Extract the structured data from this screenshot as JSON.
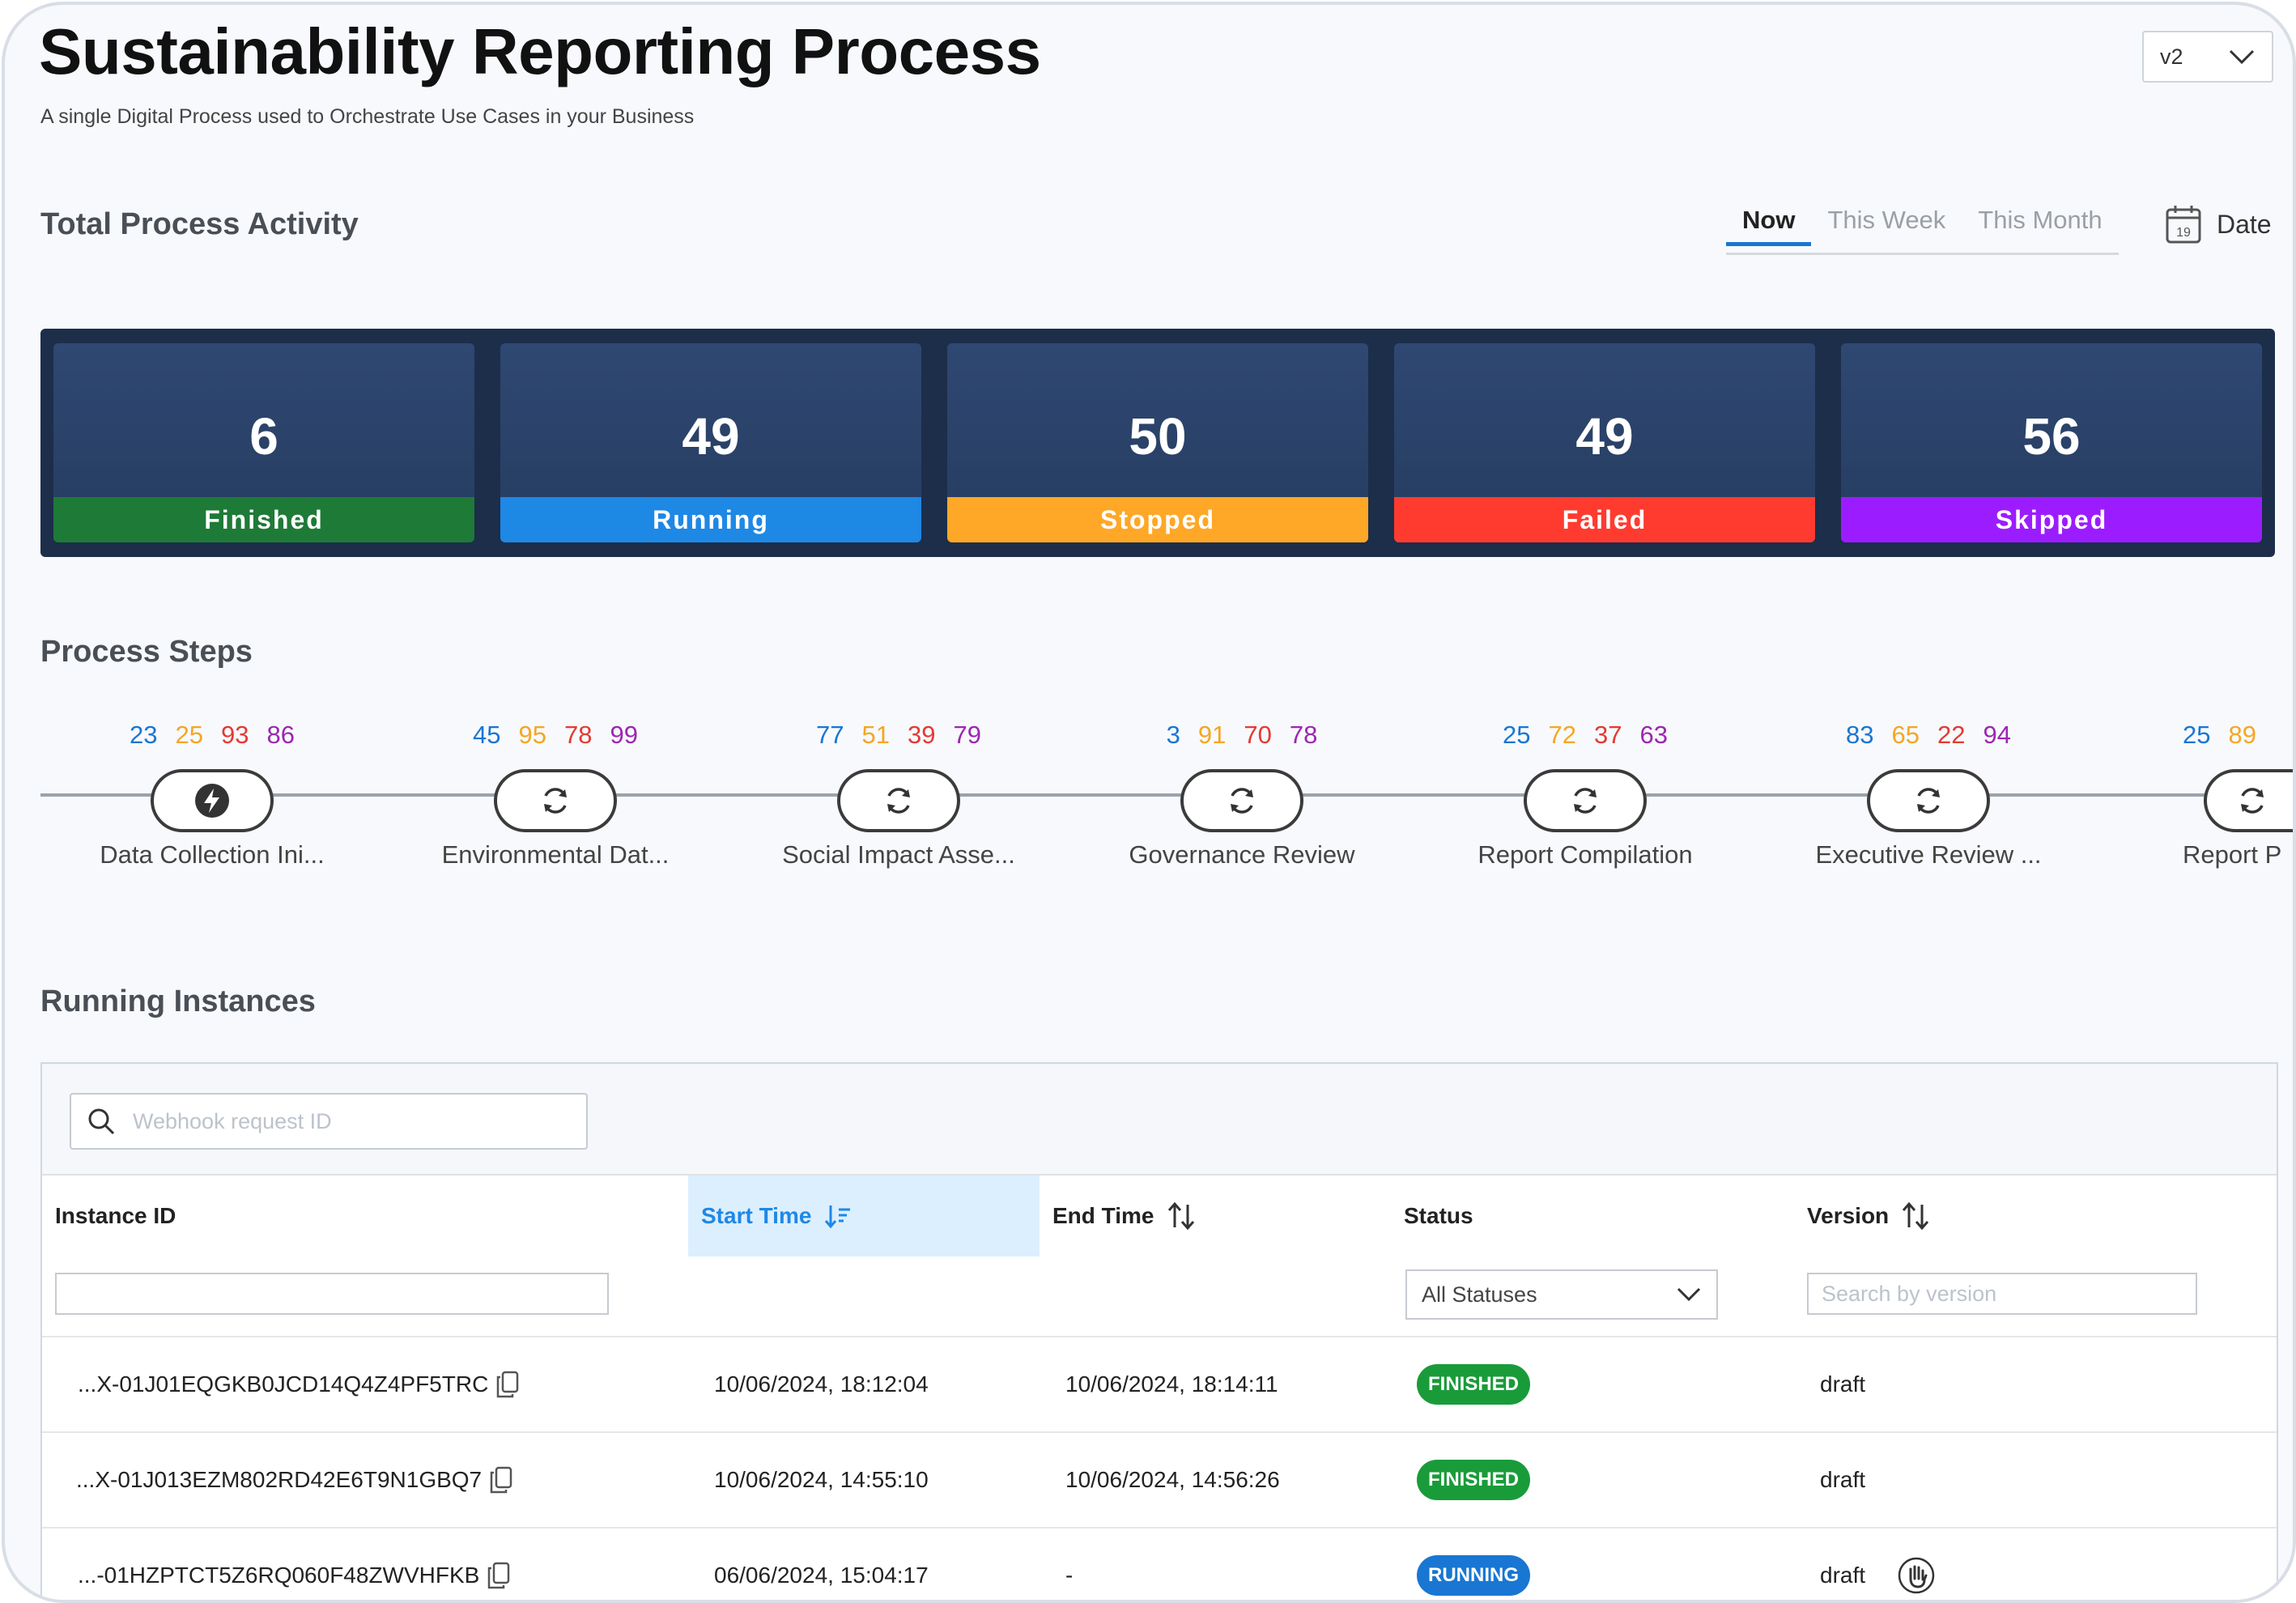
{
  "header": {
    "title": "Sustainability Reporting Process",
    "subtitle": "A single Digital Process used to Orchestrate Use Cases in your Business",
    "version": "v2"
  },
  "activity": {
    "title": "Total Process Activity",
    "tabs": [
      "Now",
      "This Week",
      "This Month"
    ],
    "active_tab": "Now",
    "date_label": "Date",
    "calendar_day": "19",
    "stats": [
      {
        "value": "6",
        "label": "Finished",
        "color": "#1e7a37"
      },
      {
        "value": "49",
        "label": "Running",
        "color": "#1e88e5"
      },
      {
        "value": "50",
        "label": "Stopped",
        "color": "#ffa726"
      },
      {
        "value": "49",
        "label": "Failed",
        "color": "#ff3b30"
      },
      {
        "value": "56",
        "label": "Skipped",
        "color": "#9b1dff"
      }
    ]
  },
  "steps": {
    "title": "Process Steps",
    "items": [
      {
        "name": "Data Collection Ini...",
        "counts": [
          "23",
          "25",
          "93",
          "86"
        ],
        "icon": "lightning-icon"
      },
      {
        "name": "Environmental Dat...",
        "counts": [
          "45",
          "95",
          "78",
          "99"
        ],
        "icon": "refresh-icon"
      },
      {
        "name": "Social Impact Asse...",
        "counts": [
          "77",
          "51",
          "39",
          "79"
        ],
        "icon": "refresh-icon"
      },
      {
        "name": "Governance Review",
        "counts": [
          "3",
          "91",
          "70",
          "78"
        ],
        "icon": "refresh-icon"
      },
      {
        "name": "Report Compilation",
        "counts": [
          "25",
          "72",
          "37",
          "63"
        ],
        "icon": "refresh-icon"
      },
      {
        "name": "Executive Review ...",
        "counts": [
          "83",
          "65",
          "22",
          "94"
        ],
        "icon": "refresh-icon"
      },
      {
        "name": "Report P",
        "counts": [
          "25",
          "89"
        ],
        "icon": "refresh-icon"
      }
    ]
  },
  "instances": {
    "title": "Running Instances",
    "search_placeholder": "Webhook request ID",
    "columns": {
      "instance_id": "Instance ID",
      "start_time": "Start Time",
      "end_time": "End Time",
      "status": "Status",
      "version": "Version"
    },
    "filters": {
      "instance_id_value": "",
      "status_value": "All Statuses",
      "version_placeholder": "Search by version"
    },
    "rows": [
      {
        "id": "...X-01J01EQGKB0JCD14Q4Z4PF5TRC",
        "start": "10/06/2024, 18:12:04",
        "end": "10/06/2024, 18:14:11",
        "status": "FINISHED",
        "version": "draft"
      },
      {
        "id": "...X-01J013EZM802RD42E6T9N1GBQ7",
        "start": "10/06/2024, 14:55:10",
        "end": "10/06/2024, 14:56:26",
        "status": "FINISHED",
        "version": "draft"
      },
      {
        "id": "...-01HZPTCT5Z6RQ060F48ZWVHFKB",
        "start": "06/06/2024, 15:04:17",
        "end": "-",
        "status": "RUNNING",
        "version": "draft"
      }
    ]
  }
}
